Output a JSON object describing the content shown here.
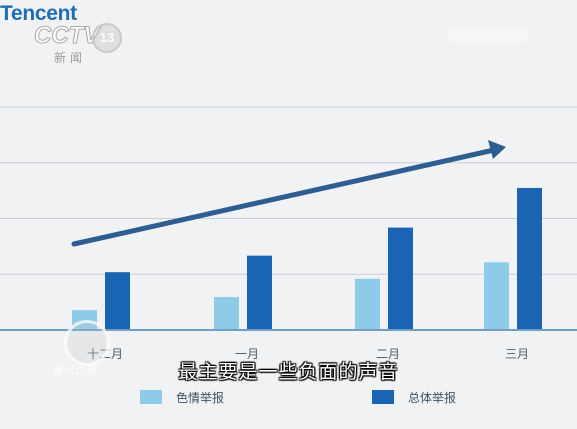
{
  "brand": {
    "tencent": "Tencent",
    "cctv": "CCTV",
    "channel": "13",
    "cctv_sub": "新闻",
    "watermark": "焦点访谈"
  },
  "subtitle": "最主要是一些负面的声音",
  "chart_data": {
    "type": "bar",
    "categories": [
      "十二月",
      "一月",
      "二月",
      "三月"
    ],
    "series": [
      {
        "name": "色情举报",
        "values": [
          1.2,
          2.0,
          3.1,
          4.1
        ],
        "color": "#8ecbe9"
      },
      {
        "name": "总体举报",
        "values": [
          3.5,
          4.5,
          6.2,
          8.6
        ],
        "color": "#1a64b4"
      }
    ],
    "ylim": [
      0,
      13.5
    ],
    "grid": true,
    "legend": "bottom",
    "trend_arrow": true,
    "trend_arrow_color": "#2e5d91"
  }
}
